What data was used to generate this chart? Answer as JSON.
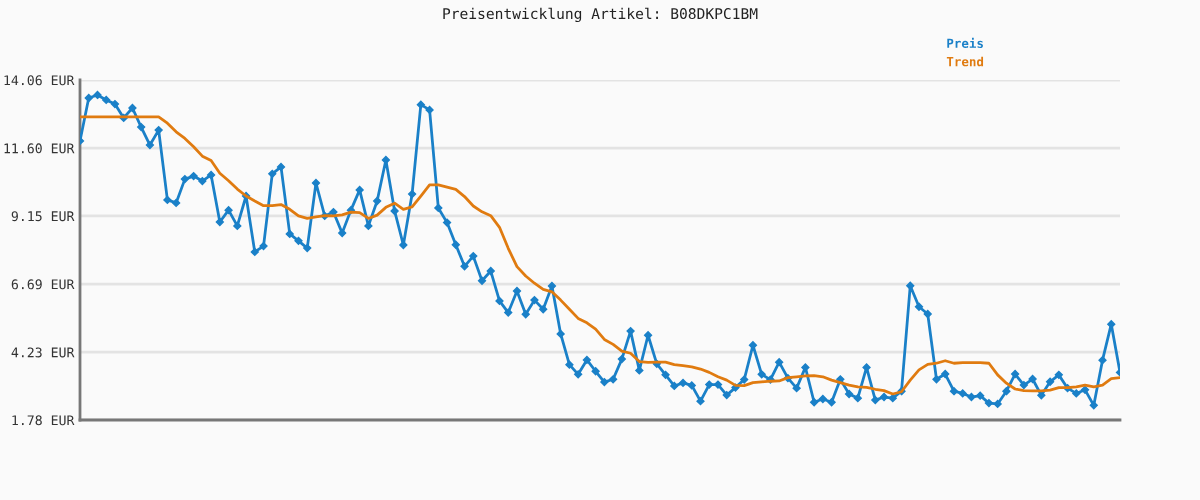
{
  "chart_data": {
    "type": "line",
    "title": "Preisentwicklung Artikel: B08DKPC1BM",
    "categories": [
      null,
      null,
      null,
      null,
      null,
      null,
      null,
      null,
      null,
      null,
      null,
      null,
      null,
      null,
      null,
      null,
      null,
      null,
      null,
      null,
      null,
      null,
      null,
      null,
      null,
      null,
      null,
      null,
      null,
      null,
      null,
      null,
      null,
      null,
      null,
      null,
      null,
      null,
      null,
      null,
      null,
      null,
      null,
      null,
      null,
      null,
      null,
      null,
      null,
      null,
      null,
      null,
      null,
      null,
      null,
      null,
      null,
      null,
      null,
      null,
      null,
      null,
      null,
      null,
      null,
      null,
      null,
      null,
      null,
      null,
      null,
      null,
      null,
      null,
      null,
      null,
      null,
      null,
      null,
      null,
      null,
      null,
      null,
      null,
      null,
      null,
      null,
      null,
      null,
      null,
      null,
      null,
      null,
      null,
      null,
      null,
      null,
      null,
      null,
      null,
      null,
      null,
      null,
      null,
      null,
      null,
      null,
      null,
      null,
      null,
      null,
      null,
      null,
      null,
      null,
      null,
      null,
      null,
      null,
      null
    ],
    "series": [
      {
        "name": "Preis",
        "color": "#1a80c8",
        "marker": "diamond",
        "values": [
          11.86,
          13.41,
          13.52,
          13.34,
          13.19,
          12.69,
          13.05,
          12.36,
          11.71,
          12.25,
          9.73,
          9.62,
          10.48,
          10.59,
          10.41,
          10.63,
          8.93,
          9.36,
          8.79,
          9.87,
          7.85,
          8.06,
          10.67,
          10.92,
          8.5,
          8.25,
          7.99,
          10.34,
          9.15,
          9.29,
          8.53,
          9.36,
          10.09,
          8.79,
          9.69,
          11.17,
          9.33,
          8.1,
          9.94,
          13.17,
          12.98,
          9.44,
          8.91,
          8.11,
          7.33,
          7.7,
          6.81,
          7.16,
          6.08,
          5.66,
          6.44,
          5.6,
          6.11,
          5.78,
          6.62,
          4.89,
          3.78,
          3.43,
          3.95,
          3.54,
          3.15,
          3.25,
          3.98,
          4.99,
          3.57,
          4.84,
          3.81,
          3.41,
          3.01,
          3.12,
          3.03,
          2.46,
          3.06,
          3.06,
          2.68,
          2.95,
          3.24,
          4.48,
          3.43,
          3.24,
          3.87,
          3.29,
          2.93,
          3.68,
          2.42,
          2.54,
          2.42,
          3.25,
          2.72,
          2.57,
          3.68,
          2.5,
          2.61,
          2.57,
          2.82,
          6.63,
          5.87,
          5.61,
          3.25,
          3.44,
          2.82,
          2.74,
          2.61,
          2.66,
          2.39,
          2.36,
          2.82,
          3.44,
          3.04,
          3.26,
          2.67,
          3.16,
          3.41,
          2.93,
          2.74,
          2.87,
          2.31,
          3.94,
          5.24,
          3.5
        ]
      },
      {
        "name": "Trend",
        "color": "#e07b10",
        "marker": "none",
        "values": [
          12.73,
          12.73,
          12.73,
          12.73,
          12.73,
          12.73,
          12.73,
          12.73,
          12.73,
          12.73,
          12.5,
          12.19,
          11.95,
          11.65,
          11.31,
          11.15,
          10.69,
          10.42,
          10.12,
          9.87,
          9.69,
          9.52,
          9.52,
          9.56,
          9.39,
          9.15,
          9.06,
          9.12,
          9.16,
          9.15,
          9.19,
          9.29,
          9.27,
          9.06,
          9.18,
          9.46,
          9.61,
          9.39,
          9.48,
          9.87,
          10.27,
          10.27,
          10.19,
          10.11,
          9.85,
          9.51,
          9.3,
          9.16,
          8.74,
          7.98,
          7.32,
          6.98,
          6.72,
          6.5,
          6.41,
          6.11,
          5.78,
          5.45,
          5.29,
          5.06,
          4.69,
          4.51,
          4.27,
          4.19,
          3.89,
          3.86,
          3.87,
          3.87,
          3.78,
          3.74,
          3.7,
          3.62,
          3.5,
          3.34,
          3.22,
          3.03,
          3.02,
          3.13,
          3.16,
          3.18,
          3.19,
          3.31,
          3.34,
          3.37,
          3.38,
          3.34,
          3.22,
          3.13,
          3.04,
          2.98,
          2.96,
          2.89,
          2.84,
          2.72,
          2.8,
          3.22,
          3.59,
          3.79,
          3.83,
          3.92,
          3.83,
          3.85,
          3.85,
          3.85,
          3.83,
          3.41,
          3.11,
          2.9,
          2.84,
          2.83,
          2.83,
          2.86,
          2.95,
          2.95,
          2.98,
          3.04,
          2.98,
          3.04,
          3.27,
          3.31
        ]
      }
    ],
    "ylim": [
      1.78,
      14.06
    ],
    "yticks": [
      {
        "value": 1.78,
        "label": "1.78 EUR"
      },
      {
        "value": 4.23,
        "label": "4.23 EUR"
      },
      {
        "value": 6.69,
        "label": "6.69 EUR"
      },
      {
        "value": 9.15,
        "label": "9.15 EUR"
      },
      {
        "value": 11.6,
        "label": "11.60 EUR"
      },
      {
        "value": 14.06,
        "label": "14.06 EUR"
      }
    ],
    "grid": "y",
    "legend": "top right",
    "line_style": "solid"
  }
}
